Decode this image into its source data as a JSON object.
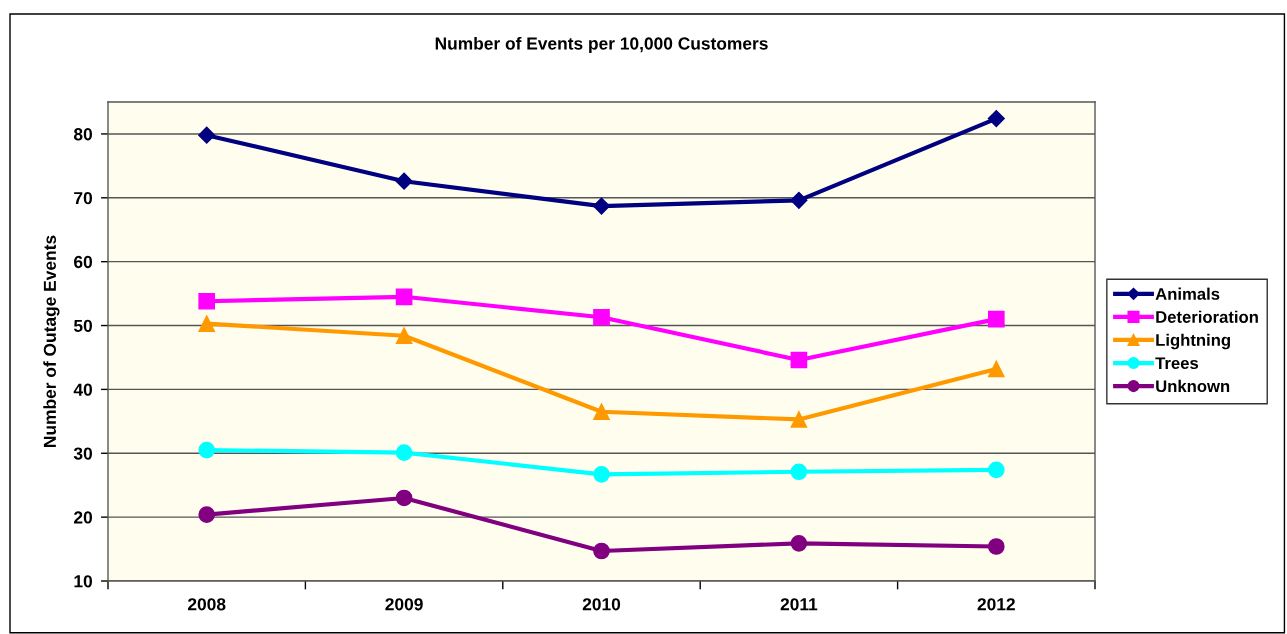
{
  "chart_data": {
    "type": "line",
    "title": "Number of Events per 10,000 Customers",
    "ylabel": "Number of Outage Events",
    "categories": [
      "2008",
      "2009",
      "2010",
      "2011",
      "2012"
    ],
    "series": [
      {
        "name": "Animals",
        "color": "#000080",
        "marker": "diamond",
        "values": [
          79.8,
          72.6,
          68.7,
          69.6,
          82.4
        ]
      },
      {
        "name": "Deterioration",
        "color": "#ff00ff",
        "marker": "square",
        "values": [
          53.8,
          54.5,
          51.3,
          44.6,
          51.0
        ]
      },
      {
        "name": "Lightning",
        "color": "#ff9900",
        "marker": "triangle",
        "values": [
          50.3,
          48.4,
          36.5,
          35.3,
          43.2
        ]
      },
      {
        "name": "Trees",
        "color": "#00ffff",
        "marker": "circle",
        "values": [
          30.5,
          30.1,
          26.7,
          27.1,
          27.4
        ]
      },
      {
        "name": "Unknown",
        "color": "#800080",
        "marker": "circle",
        "values": [
          20.4,
          23.0,
          14.7,
          15.9,
          15.4
        ]
      }
    ],
    "ylim": [
      10,
      85
    ],
    "yticks": [
      10,
      20,
      30,
      40,
      50,
      60,
      70,
      80
    ],
    "grid": "y",
    "legend": "right",
    "line_style": "solid"
  }
}
